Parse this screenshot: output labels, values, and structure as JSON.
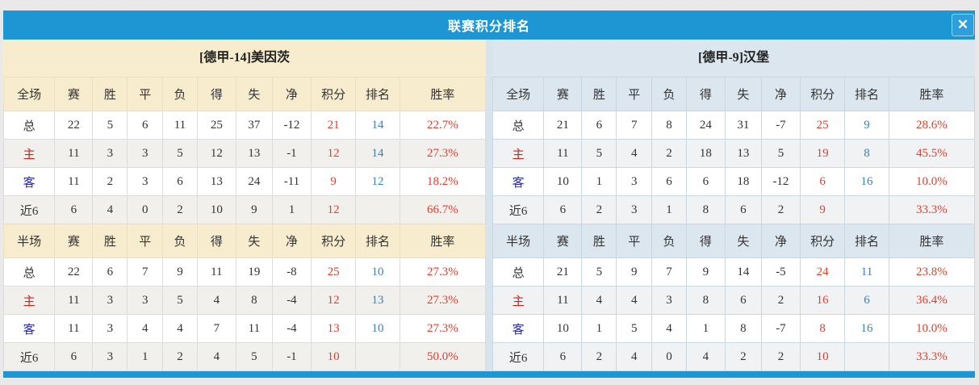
{
  "dialog": {
    "title": "联赛积分排名",
    "close_icon": "✕"
  },
  "colors": {
    "accent_blue": "#1e96d3",
    "cream_header": "#f8ecce",
    "blue_header": "#dce6ee",
    "points_color": "#e23e2d",
    "rank_color": "#3d7dc2",
    "rate_color": "#e23e2d",
    "home_label_color": "#cf241b",
    "away_label_color": "#2b2bb4"
  },
  "layout": {
    "col_widths": [
      "10.6%",
      "7.9%",
      "7.2%",
      "7.3%",
      "7.2%",
      "8.0%",
      "7.6%",
      "8.0%",
      "9.3%",
      "9.1%",
      "17.8%"
    ]
  },
  "tables": [
    {
      "team": "[德甲-14]美因茨",
      "theme": "cream",
      "sections": [
        {
          "columns": [
            "全场",
            "赛",
            "胜",
            "平",
            "负",
            "得",
            "失",
            "净",
            "积分",
            "排名",
            "胜率"
          ],
          "rows": [
            [
              "总",
              "22",
              "5",
              "6",
              "11",
              "25",
              "37",
              "-12",
              "21",
              "14",
              "22.7%"
            ],
            [
              "主",
              "11",
              "3",
              "3",
              "5",
              "12",
              "13",
              "-1",
              "12",
              "14",
              "27.3%"
            ],
            [
              "客",
              "11",
              "2",
              "3",
              "6",
              "13",
              "24",
              "-11",
              "9",
              "12",
              "18.2%"
            ],
            [
              "近6",
              "6",
              "4",
              "0",
              "2",
              "10",
              "9",
              "1",
              "12",
              "",
              "66.7%"
            ]
          ]
        },
        {
          "columns": [
            "半场",
            "赛",
            "胜",
            "平",
            "负",
            "得",
            "失",
            "净",
            "积分",
            "排名",
            "胜率"
          ],
          "rows": [
            [
              "总",
              "22",
              "6",
              "7",
              "9",
              "11",
              "19",
              "-8",
              "25",
              "10",
              "27.3%"
            ],
            [
              "主",
              "11",
              "3",
              "3",
              "5",
              "4",
              "8",
              "-4",
              "12",
              "13",
              "27.3%"
            ],
            [
              "客",
              "11",
              "3",
              "4",
              "4",
              "7",
              "11",
              "-4",
              "13",
              "10",
              "27.3%"
            ],
            [
              "近6",
              "6",
              "3",
              "1",
              "2",
              "4",
              "5",
              "-1",
              "10",
              "",
              "50.0%"
            ]
          ]
        }
      ]
    },
    {
      "team": "[德甲-9]汉堡",
      "theme": "blue",
      "sections": [
        {
          "columns": [
            "全场",
            "赛",
            "胜",
            "平",
            "负",
            "得",
            "失",
            "净",
            "积分",
            "排名",
            "胜率"
          ],
          "rows": [
            [
              "总",
              "21",
              "6",
              "7",
              "8",
              "24",
              "31",
              "-7",
              "25",
              "9",
              "28.6%"
            ],
            [
              "主",
              "11",
              "5",
              "4",
              "2",
              "18",
              "13",
              "5",
              "19",
              "8",
              "45.5%"
            ],
            [
              "客",
              "10",
              "1",
              "3",
              "6",
              "6",
              "18",
              "-12",
              "6",
              "16",
              "10.0%"
            ],
            [
              "近6",
              "6",
              "2",
              "3",
              "1",
              "8",
              "6",
              "2",
              "9",
              "",
              "33.3%"
            ]
          ]
        },
        {
          "columns": [
            "半场",
            "赛",
            "胜",
            "平",
            "负",
            "得",
            "失",
            "净",
            "积分",
            "排名",
            "胜率"
          ],
          "rows": [
            [
              "总",
              "21",
              "5",
              "9",
              "7",
              "9",
              "14",
              "-5",
              "24",
              "11",
              "23.8%"
            ],
            [
              "主",
              "11",
              "4",
              "4",
              "3",
              "8",
              "6",
              "2",
              "16",
              "6",
              "36.4%"
            ],
            [
              "客",
              "10",
              "1",
              "5",
              "4",
              "1",
              "8",
              "-7",
              "8",
              "16",
              "10.0%"
            ],
            [
              "近6",
              "6",
              "2",
              "4",
              "0",
              "4",
              "2",
              "2",
              "10",
              "",
              "33.3%"
            ]
          ]
        }
      ]
    }
  ]
}
